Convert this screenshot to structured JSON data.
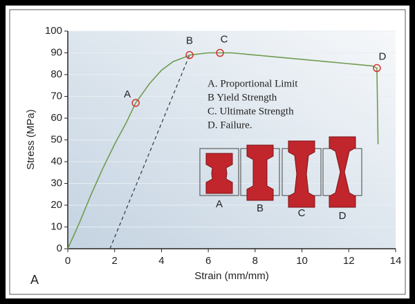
{
  "chart_data": {
    "type": "line",
    "x_label": "Strain (mm/mm)",
    "y_label": "Stress (MPa)",
    "panel_label": "A",
    "xlim": [
      0,
      14
    ],
    "ylim": [
      0,
      100
    ],
    "xticks": [
      0,
      2,
      4,
      6,
      8,
      10,
      12,
      14
    ],
    "yticks": [
      0,
      10,
      20,
      30,
      40,
      50,
      60,
      70,
      80,
      90,
      100
    ],
    "grid": true,
    "x": [
      0,
      0.5,
      1,
      1.5,
      2,
      2.5,
      2.9,
      3.5,
      4,
      4.5,
      5,
      5.2,
      6,
      6.5,
      7,
      8,
      9,
      10,
      11,
      12,
      13,
      13.2,
      13.25
    ],
    "series": [
      {
        "color": "#6f9b4f",
        "values": [
          0,
          12,
          25,
          37,
          48,
          58,
          67,
          76,
          82,
          86,
          88,
          89,
          90,
          90,
          90,
          89,
          88,
          87,
          86,
          85,
          84,
          83,
          48
        ]
      }
    ],
    "offset_line": {
      "x": [
        1.8,
        5.2
      ],
      "values": [
        0,
        89
      ]
    },
    "points": [
      {
        "label": "A",
        "x": 2.9,
        "value": 67
      },
      {
        "label": "B",
        "x": 5.2,
        "value": 89
      },
      {
        "label": "C",
        "x": 6.5,
        "value": 90
      },
      {
        "label": "D",
        "x": 13.2,
        "value": 83
      }
    ],
    "point_color": "#d0342c",
    "notes": [
      "A. Proportional Limit",
      "B Yield Strength",
      "C. Ultimate Strength",
      "D. Failure."
    ],
    "specimens": [
      "A",
      "B",
      "C",
      "D"
    ]
  }
}
